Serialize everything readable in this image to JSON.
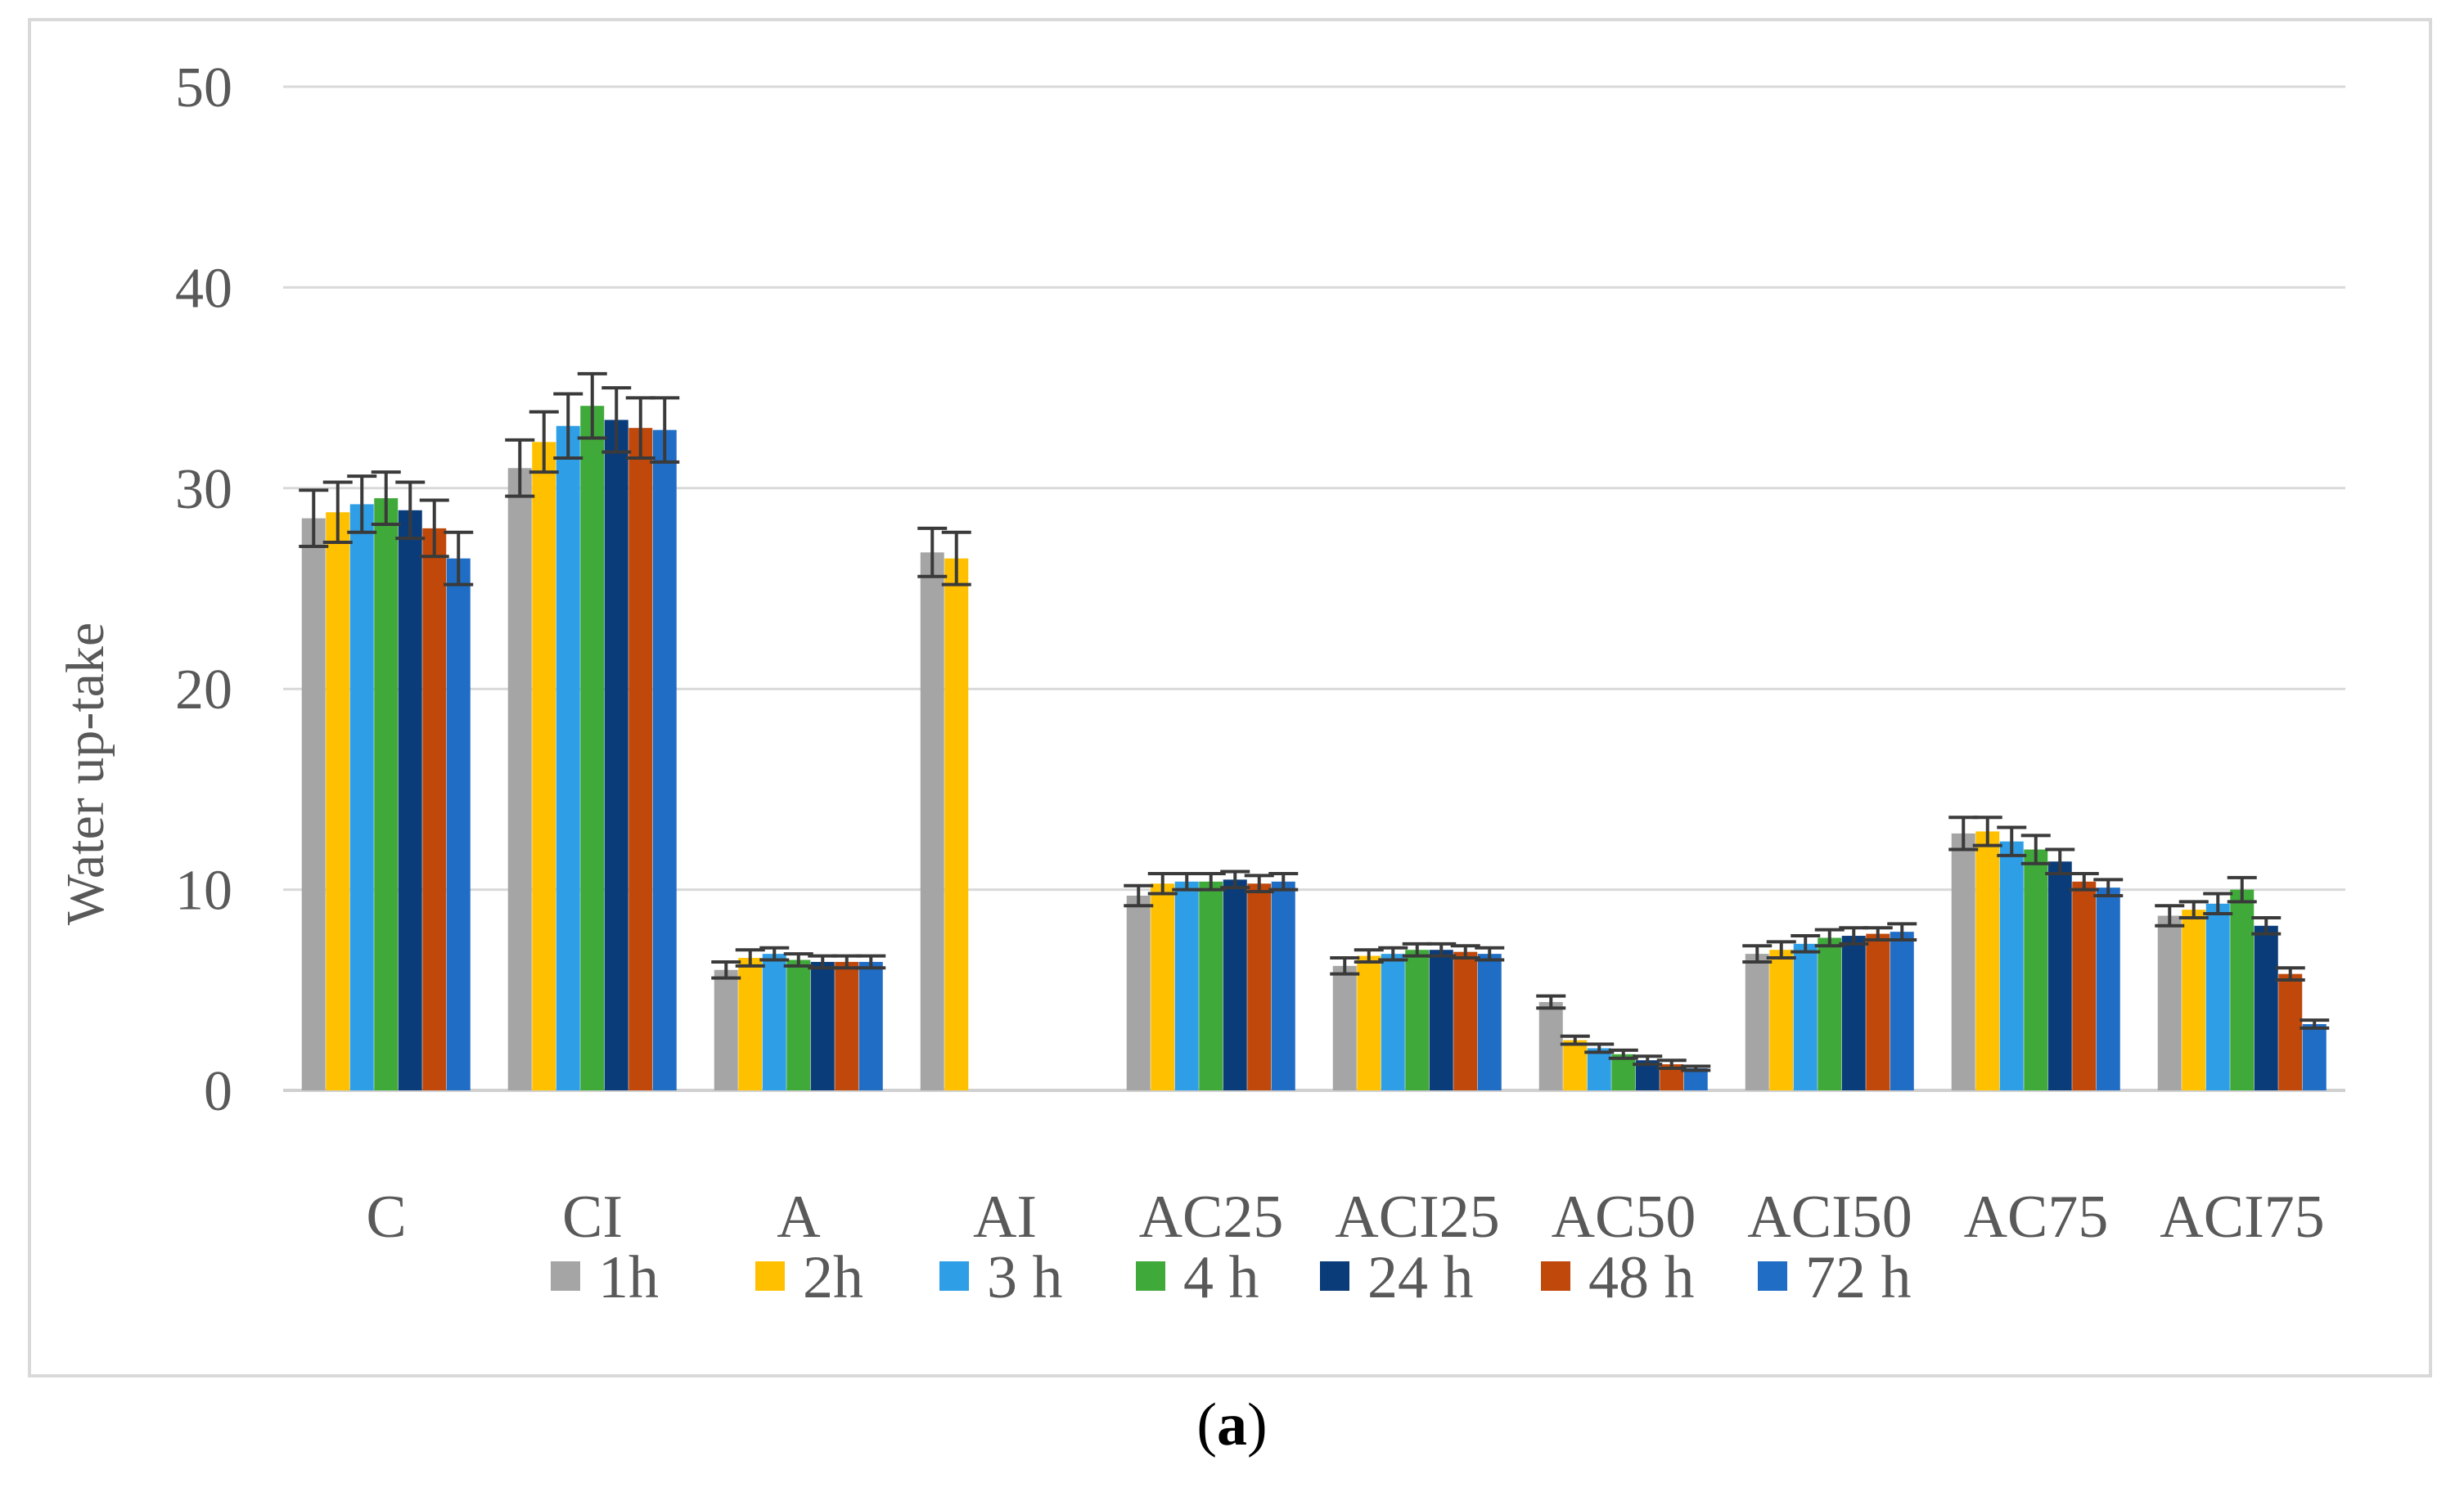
{
  "chart_data": {
    "type": "bar",
    "title": "",
    "xlabel": "",
    "ylabel": "Water up-take",
    "ylim": [
      0,
      50
    ],
    "yticks": [
      0,
      10,
      20,
      30,
      40,
      50
    ],
    "grid": true,
    "legend_position": "bottom",
    "categories": [
      "C",
      "CI",
      "A",
      "AI",
      "AC25",
      "ACI25",
      "AC50",
      "ACI50",
      "AC75",
      "ACI75"
    ],
    "series": [
      {
        "name": "1h",
        "color": "#a5a5a5",
        "values": [
          28.5,
          31.0,
          6.0,
          26.8,
          9.7,
          6.2,
          4.4,
          6.8,
          12.8,
          8.7
        ],
        "errors": [
          1.4,
          1.4,
          0.4,
          1.2,
          0.5,
          0.4,
          0.3,
          0.4,
          0.8,
          0.5
        ]
      },
      {
        "name": "2h",
        "color": "#ffc000",
        "values": [
          28.8,
          32.3,
          6.6,
          26.5,
          10.3,
          6.7,
          2.5,
          7.0,
          12.9,
          9.0
        ],
        "errors": [
          1.5,
          1.5,
          0.4,
          1.3,
          0.5,
          0.3,
          0.2,
          0.4,
          0.7,
          0.4
        ]
      },
      {
        "name": "3 h",
        "color": "#2e9ee6",
        "values": [
          29.2,
          33.1,
          6.8,
          null,
          10.4,
          6.8,
          2.1,
          7.3,
          12.4,
          9.3
        ],
        "errors": [
          1.4,
          1.6,
          0.3,
          null,
          0.4,
          0.3,
          0.2,
          0.4,
          0.7,
          0.5
        ]
      },
      {
        "name": "4 h",
        "color": "#3faa3a",
        "values": [
          29.5,
          34.1,
          6.5,
          null,
          10.4,
          7.0,
          1.8,
          7.6,
          12.0,
          10.0
        ],
        "errors": [
          1.3,
          1.6,
          0.3,
          null,
          0.4,
          0.3,
          0.2,
          0.4,
          0.7,
          0.6
        ]
      },
      {
        "name": "24 h",
        "color": "#0a3c7a",
        "values": [
          28.9,
          33.4,
          6.4,
          null,
          10.5,
          7.0,
          1.5,
          7.7,
          11.4,
          8.2
        ],
        "errors": [
          1.4,
          1.6,
          0.3,
          null,
          0.4,
          0.3,
          0.2,
          0.4,
          0.6,
          0.4
        ]
      },
      {
        "name": "48 h",
        "color": "#c0480a",
        "values": [
          28.0,
          33.0,
          6.4,
          null,
          10.3,
          6.9,
          1.3,
          7.8,
          10.4,
          5.8
        ],
        "errors": [
          1.4,
          1.5,
          0.3,
          null,
          0.4,
          0.3,
          0.2,
          0.3,
          0.4,
          0.3
        ]
      },
      {
        "name": "72 h",
        "color": "#1f6dc5",
        "values": [
          26.5,
          32.9,
          6.4,
          null,
          10.4,
          6.8,
          1.1,
          7.9,
          10.1,
          3.3
        ],
        "errors": [
          1.3,
          1.6,
          0.3,
          null,
          0.4,
          0.3,
          0.1,
          0.4,
          0.4,
          0.2
        ]
      }
    ]
  },
  "caption": {
    "open": "(",
    "label": "a",
    "close": ")"
  }
}
